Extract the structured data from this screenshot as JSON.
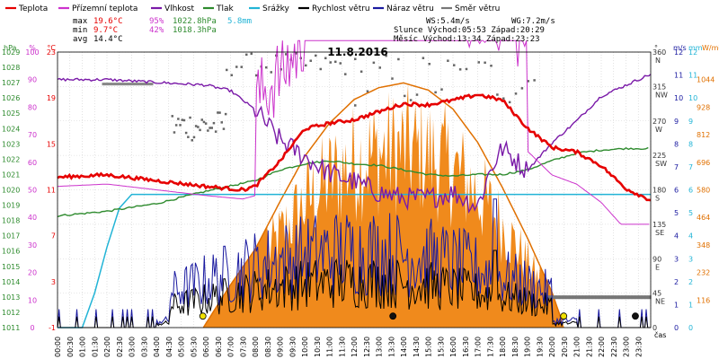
{
  "chart_data": {
    "type": "line",
    "title": "11.8.2016",
    "legend": [
      {
        "label": "Teplota",
        "color": "#e60000"
      },
      {
        "label": "Přízemní teplota",
        "color": "#cc33cc"
      },
      {
        "label": "Vlhkost",
        "color": "#7a1aa8"
      },
      {
        "label": "Tlak",
        "color": "#2e8b2e"
      },
      {
        "label": "Srážky",
        "color": "#22b4d6"
      },
      {
        "label": "Rychlost větru",
        "color": "#000000"
      },
      {
        "label": "Náraz větru",
        "color": "#1a1aa0"
      },
      {
        "label": "Směr větru",
        "color": "#777777"
      }
    ],
    "stats": {
      "max_label": "max",
      "max_temp": "19.6°C",
      "max_hum": "95%",
      "max_press": "1022.8hPa",
      "rain": "5.8mm",
      "min_label": "min",
      "min_temp": "9.7°C",
      "min_hum": "42%",
      "min_press": "1018.3hPa",
      "avg_label": "avg",
      "avg_temp": "14.4°C",
      "ws": "WS:5.4m/s",
      "wg": "WG:7.2m/s",
      "sun": "Slunce Východ:05:53  Západ:20:29",
      "moon": "Měsíc  Východ:13:34  Západ:23:23"
    },
    "axes": {
      "hpa": {
        "unit": "hPa",
        "color": "#2e8b2e",
        "ticks": [
          "1029",
          "1028",
          "1027",
          "1026",
          "1025",
          "1024",
          "1023",
          "1022",
          "1021",
          "1020",
          "1019",
          "1018",
          "1017",
          "1016",
          "1015",
          "1014",
          "1013",
          "1012",
          "1011"
        ]
      },
      "pct": {
        "unit": "%",
        "color": "#cc33cc",
        "ticks": [
          "100",
          "90",
          "80",
          "70",
          "60",
          "50",
          "40",
          "30",
          "20",
          "10",
          "0"
        ]
      },
      "celsius": {
        "unit": "°C",
        "color": "#e60000",
        "ticks": [
          "23",
          "19",
          "15",
          "11",
          "7",
          "3",
          "-1"
        ]
      },
      "deg": {
        "unit": "°",
        "ticks": [
          "360",
          "315",
          "270",
          "225",
          "180",
          "135",
          "90",
          "45",
          "0"
        ],
        "dirs": [
          "N",
          "NW",
          "W",
          "SW",
          "S",
          "SE",
          "E",
          "NE",
          ""
        ]
      },
      "ms": {
        "unit": "m/s",
        "color": "#1a1aa0",
        "ticks": [
          "12",
          "11",
          "10",
          "9",
          "8",
          "7",
          "6",
          "5",
          "4",
          "3",
          "2",
          "1",
          "0"
        ]
      },
      "mm": {
        "unit": "mm",
        "color": "#22b4d6",
        "ticks": [
          "12",
          "11",
          "10",
          "9",
          "8",
          "7",
          "6",
          "5",
          "4",
          "3",
          "2",
          "1",
          "0"
        ]
      },
      "wm2": {
        "unit": "W/m²",
        "color": "#e07000",
        "ticks": [
          "1044",
          "928",
          "812",
          "696",
          "580",
          "464",
          "348",
          "232",
          "116"
        ]
      }
    },
    "x_ticks": [
      "00:00",
      "00:30",
      "01:00",
      "01:30",
      "02:00",
      "02:30",
      "03:00",
      "03:30",
      "04:00",
      "04:30",
      "05:00",
      "05:30",
      "06:00",
      "06:30",
      "07:00",
      "07:30",
      "08:00",
      "08:30",
      "09:00",
      "09:30",
      "10:00",
      "10:30",
      "11:00",
      "11:30",
      "12:00",
      "12:30",
      "13:00",
      "13:30",
      "14:00",
      "14:30",
      "15:00",
      "15:30",
      "16:00",
      "16:30",
      "17:00",
      "17:30",
      "18:00",
      "18:30",
      "19:00",
      "19:30",
      "20:00",
      "20:30",
      "21:00",
      "21:30",
      "22:00",
      "22:30",
      "23:00",
      "23:30"
    ],
    "x_label": "čas",
    "series": {
      "teplota": {
        "t": [
          0,
          2,
          4,
          6,
          7.5,
          8,
          9,
          10,
          11,
          12,
          13,
          14,
          15,
          16,
          17,
          18,
          19,
          20,
          21,
          22,
          23,
          24
        ],
        "v": [
          12.1,
          12.3,
          11.8,
          11.3,
          11.0,
          11.3,
          13.5,
          16.3,
          16.8,
          17.1,
          17.8,
          18.5,
          18.4,
          18.8,
          19.3,
          18.8,
          16.4,
          14.7,
          14.3,
          13.1,
          11.1,
          10.1
        ]
      },
      "vlhkost": {
        "t": [
          0,
          2,
          4,
          6,
          7,
          8,
          9,
          10,
          11,
          12,
          13,
          14,
          15,
          16,
          17,
          17.5,
          18,
          19,
          20,
          21,
          22,
          23,
          24
        ],
        "v": [
          90,
          90,
          89,
          88,
          86,
          79,
          68,
          62,
          56,
          53,
          49,
          47,
          47,
          49,
          44,
          57,
          65,
          57,
          67,
          75,
          84,
          88,
          92
        ]
      },
      "tlak": {
        "t": [
          0,
          2,
          4,
          6,
          8,
          9,
          10,
          11,
          12,
          13,
          14,
          15,
          16,
          17,
          18,
          19,
          20,
          21,
          22,
          23,
          24
        ],
        "v": [
          1018.3,
          1018.6,
          1019.1,
          1019.9,
          1020.6,
          1021.3,
          1021.7,
          1021.9,
          1021.7,
          1021.6,
          1021.3,
          1021.0,
          1020.9,
          1021.0,
          1021.0,
          1021.3,
          1021.9,
          1022.4,
          1022.6,
          1022.7,
          1022.7
        ]
      },
      "srazky": {
        "t": [
          0,
          1.0,
          1.5,
          2.0,
          2.5,
          3.0,
          24
        ],
        "v": [
          0,
          0,
          1.5,
          3.5,
          5.2,
          5.8,
          5.8
        ]
      },
      "radiace": {
        "t": [
          5.9,
          7,
          8,
          9,
          10,
          11,
          12,
          13,
          14,
          15,
          16,
          17,
          18,
          19,
          20,
          20.5
        ],
        "v": [
          0,
          180,
          330,
          530,
          720,
          860,
          960,
          1010,
          1030,
          1000,
          920,
          780,
          590,
          380,
          150,
          0
        ]
      }
    }
  }
}
